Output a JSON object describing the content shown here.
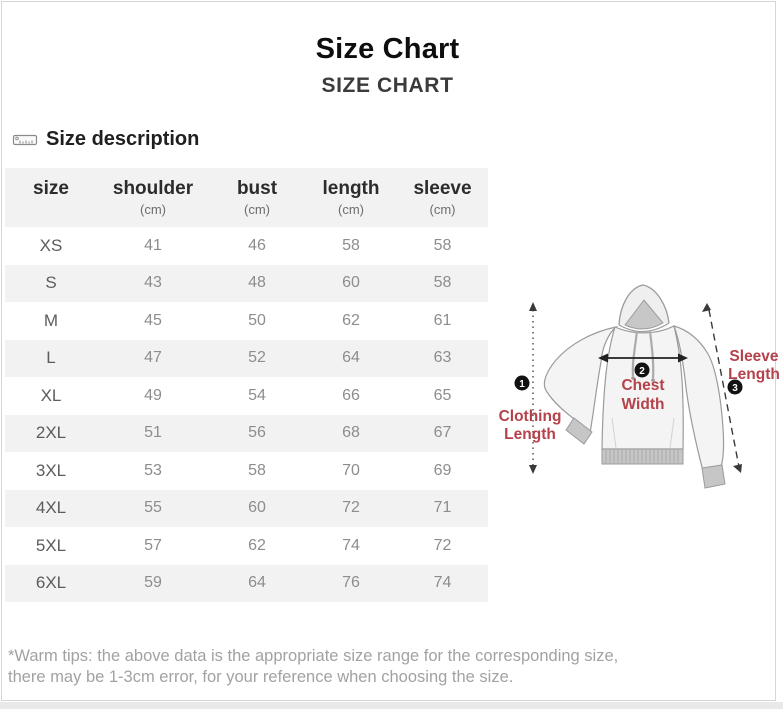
{
  "header": {
    "title": "Size Chart",
    "subtitle": "SIZE CHART"
  },
  "section": {
    "size_description_label": "Size description"
  },
  "table": {
    "columns": [
      {
        "label": "size",
        "unit": ""
      },
      {
        "label": "shoulder",
        "unit": "(cm)"
      },
      {
        "label": "bust",
        "unit": "(cm)"
      },
      {
        "label": "length",
        "unit": "(cm)"
      },
      {
        "label": "sleeve",
        "unit": "(cm)"
      }
    ],
    "row_keys": [
      "size",
      "shoulder",
      "bust",
      "length",
      "sleeve"
    ],
    "rows": [
      {
        "size": "XS",
        "shoulder": "41",
        "bust": "46",
        "length": "58",
        "sleeve": "58"
      },
      {
        "size": "S",
        "shoulder": "43",
        "bust": "48",
        "length": "60",
        "sleeve": "58"
      },
      {
        "size": "M",
        "shoulder": "45",
        "bust": "50",
        "length": "62",
        "sleeve": "61"
      },
      {
        "size": "L",
        "shoulder": "47",
        "bust": "52",
        "length": "64",
        "sleeve": "63"
      },
      {
        "size": "XL",
        "shoulder": "49",
        "bust": "54",
        "length": "66",
        "sleeve": "65"
      },
      {
        "size": "2XL",
        "shoulder": "51",
        "bust": "56",
        "length": "68",
        "sleeve": "67"
      },
      {
        "size": "3XL",
        "shoulder": "53",
        "bust": "58",
        "length": "70",
        "sleeve": "69"
      },
      {
        "size": "4XL",
        "shoulder": "55",
        "bust": "60",
        "length": "72",
        "sleeve": "71"
      },
      {
        "size": "5XL",
        "shoulder": "57",
        "bust": "62",
        "length": "74",
        "sleeve": "72"
      },
      {
        "size": "6XL",
        "shoulder": "59",
        "bust": "64",
        "length": "76",
        "sleeve": "74"
      }
    ]
  },
  "diagram": {
    "markers": [
      "1",
      "2",
      "3"
    ],
    "labels": {
      "clothing": [
        "Clothing",
        "Length"
      ],
      "chest": [
        "Chest",
        "Width"
      ],
      "sleeve": [
        "Sleeve",
        "Length"
      ]
    }
  },
  "footer": {
    "line1": "*Warm tips: the above data is the appropriate size range for the corresponding size,",
    "line2": "there may be 1-3cm error, for your reference when choosing the size."
  },
  "colors": {
    "accent_red": "#b5414a",
    "stripe": "#f2f2f2"
  }
}
